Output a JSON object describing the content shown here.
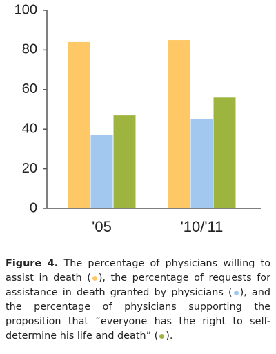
{
  "chart_data": {
    "type": "bar",
    "categories": [
      "'05",
      "'10/'11"
    ],
    "series": [
      {
        "color": "#fdc865",
        "values": [
          84,
          85
        ]
      },
      {
        "color": "#a3c8ef",
        "values": [
          37,
          45
        ]
      },
      {
        "color": "#9db53f",
        "values": [
          47,
          56
        ]
      }
    ],
    "ylim": [
      0,
      100
    ],
    "yticks": [
      0,
      20,
      40,
      60,
      80,
      100
    ],
    "grid": false
  },
  "caption": {
    "label": "Figure 4.",
    "parts": [
      " The percentage of physicians willing to assist in death (",
      "), the percentage of requests for assistance in death granted by physicians (",
      "), and the percentage of physicians supporting the proposition that “everyone has the right to self-determine his life and death” (",
      ")."
    ]
  }
}
